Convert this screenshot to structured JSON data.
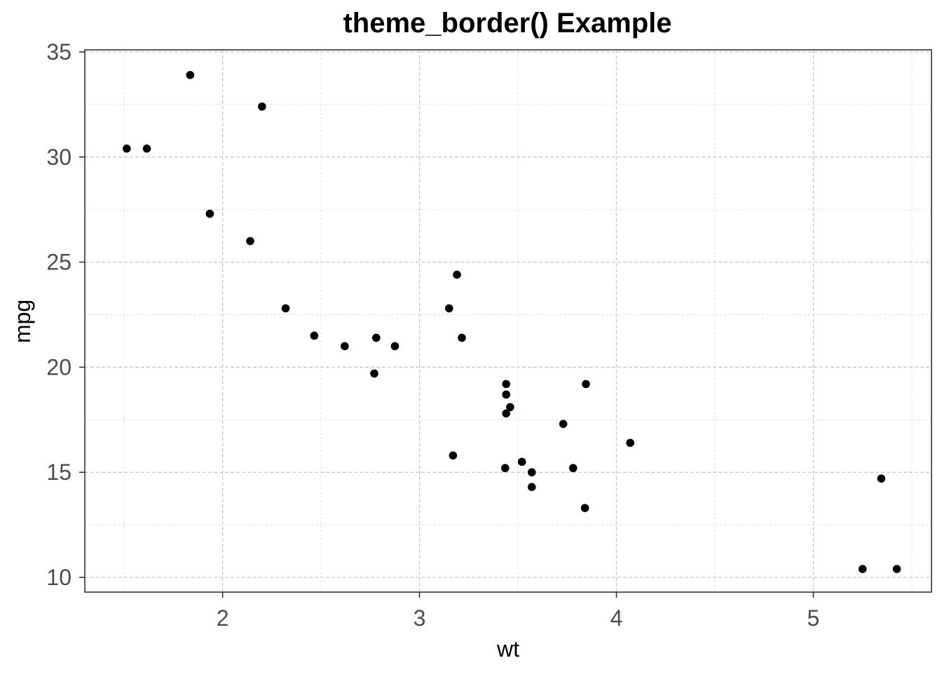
{
  "chart_data": {
    "type": "scatter",
    "title": "theme_border() Example",
    "xlabel": "wt",
    "ylabel": "mpg",
    "xlim": [
      1.3,
      5.6
    ],
    "ylim": [
      9.3,
      35.1
    ],
    "x_ticks": [
      2,
      3,
      4,
      5
    ],
    "y_ticks": [
      10,
      15,
      20,
      25,
      30,
      35
    ],
    "x_minor": [
      1.5,
      2.5,
      3.5,
      4.5,
      5.5
    ],
    "y_minor": [
      12.5,
      17.5,
      22.5,
      27.5,
      32.5
    ],
    "grid": true,
    "colors": {
      "point": "#000000",
      "grid": "#c8c8c8",
      "border": "#333333"
    },
    "points": [
      {
        "x": 1.513,
        "y": 30.4
      },
      {
        "x": 1.615,
        "y": 30.4
      },
      {
        "x": 1.835,
        "y": 33.9
      },
      {
        "x": 1.935,
        "y": 27.3
      },
      {
        "x": 2.14,
        "y": 26.0
      },
      {
        "x": 2.2,
        "y": 32.4
      },
      {
        "x": 2.32,
        "y": 22.8
      },
      {
        "x": 2.465,
        "y": 21.5
      },
      {
        "x": 2.62,
        "y": 21.0
      },
      {
        "x": 2.77,
        "y": 19.7
      },
      {
        "x": 2.78,
        "y": 21.4
      },
      {
        "x": 2.875,
        "y": 21.0
      },
      {
        "x": 3.15,
        "y": 22.8
      },
      {
        "x": 3.17,
        "y": 15.8
      },
      {
        "x": 3.19,
        "y": 24.4
      },
      {
        "x": 3.215,
        "y": 21.4
      },
      {
        "x": 3.435,
        "y": 15.2
      },
      {
        "x": 3.44,
        "y": 18.7
      },
      {
        "x": 3.44,
        "y": 19.2
      },
      {
        "x": 3.44,
        "y": 17.8
      },
      {
        "x": 3.46,
        "y": 18.1
      },
      {
        "x": 3.52,
        "y": 15.5
      },
      {
        "x": 3.57,
        "y": 14.3
      },
      {
        "x": 3.57,
        "y": 15.0
      },
      {
        "x": 3.73,
        "y": 17.3
      },
      {
        "x": 3.78,
        "y": 15.2
      },
      {
        "x": 3.84,
        "y": 13.3
      },
      {
        "x": 3.845,
        "y": 19.2
      },
      {
        "x": 4.07,
        "y": 16.4
      },
      {
        "x": 5.25,
        "y": 10.4
      },
      {
        "x": 5.345,
        "y": 14.7
      },
      {
        "x": 5.424,
        "y": 10.4
      }
    ]
  }
}
